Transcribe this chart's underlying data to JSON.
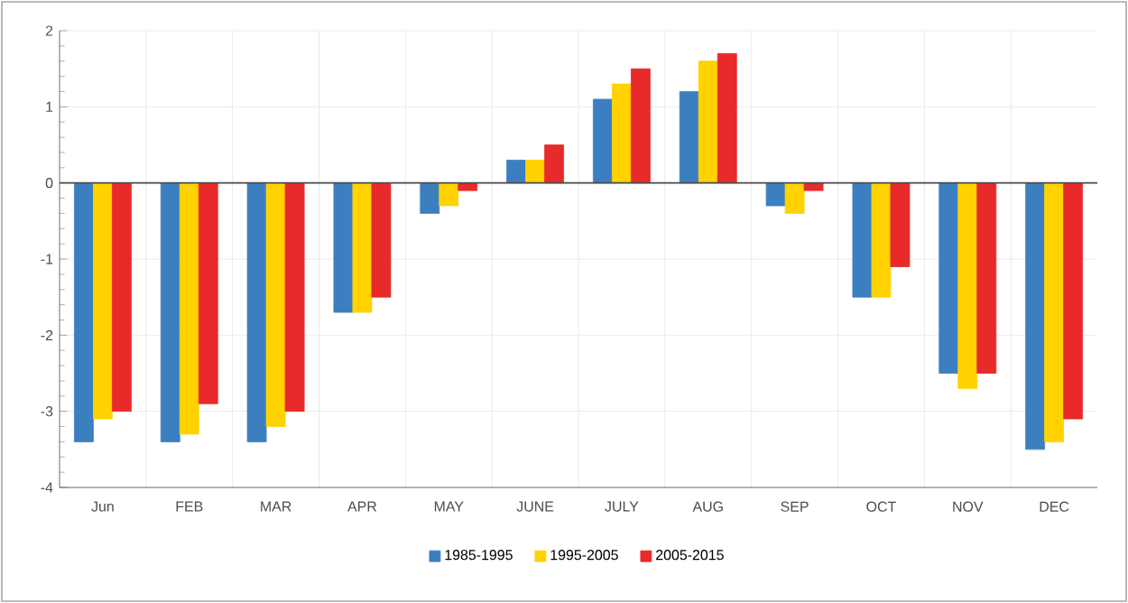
{
  "chart_data": {
    "type": "bar",
    "categories": [
      "Jun",
      "FEB",
      "MAR",
      "APR",
      "MAY",
      "JUNE",
      "JULY",
      "AUG",
      "SEP",
      "OCT",
      "NOV",
      "DEC"
    ],
    "series": [
      {
        "name": "1985-1995",
        "color": "#3c7fc1",
        "values": [
          -3.4,
          -3.4,
          -3.4,
          -1.7,
          -0.4,
          0.3,
          1.1,
          1.2,
          -0.3,
          -1.5,
          -2.5,
          -3.5
        ]
      },
      {
        "name": "1995-2005",
        "color": "#ffd200",
        "values": [
          -3.1,
          -3.3,
          -3.2,
          -1.7,
          -0.3,
          0.3,
          1.3,
          1.6,
          -0.4,
          -1.5,
          -2.7,
          -3.4
        ]
      },
      {
        "name": "2005-2015",
        "color": "#e82a2a",
        "values": [
          -3.0,
          -2.9,
          -3.0,
          -1.5,
          -0.1,
          0.5,
          1.5,
          1.7,
          -0.1,
          -1.1,
          -2.5,
          -3.1
        ]
      }
    ],
    "ylim": [
      -4,
      2
    ],
    "yticks": [
      -4,
      -3,
      -2,
      -1,
      0,
      1,
      2
    ],
    "grid": true,
    "legend": "bottom"
  }
}
